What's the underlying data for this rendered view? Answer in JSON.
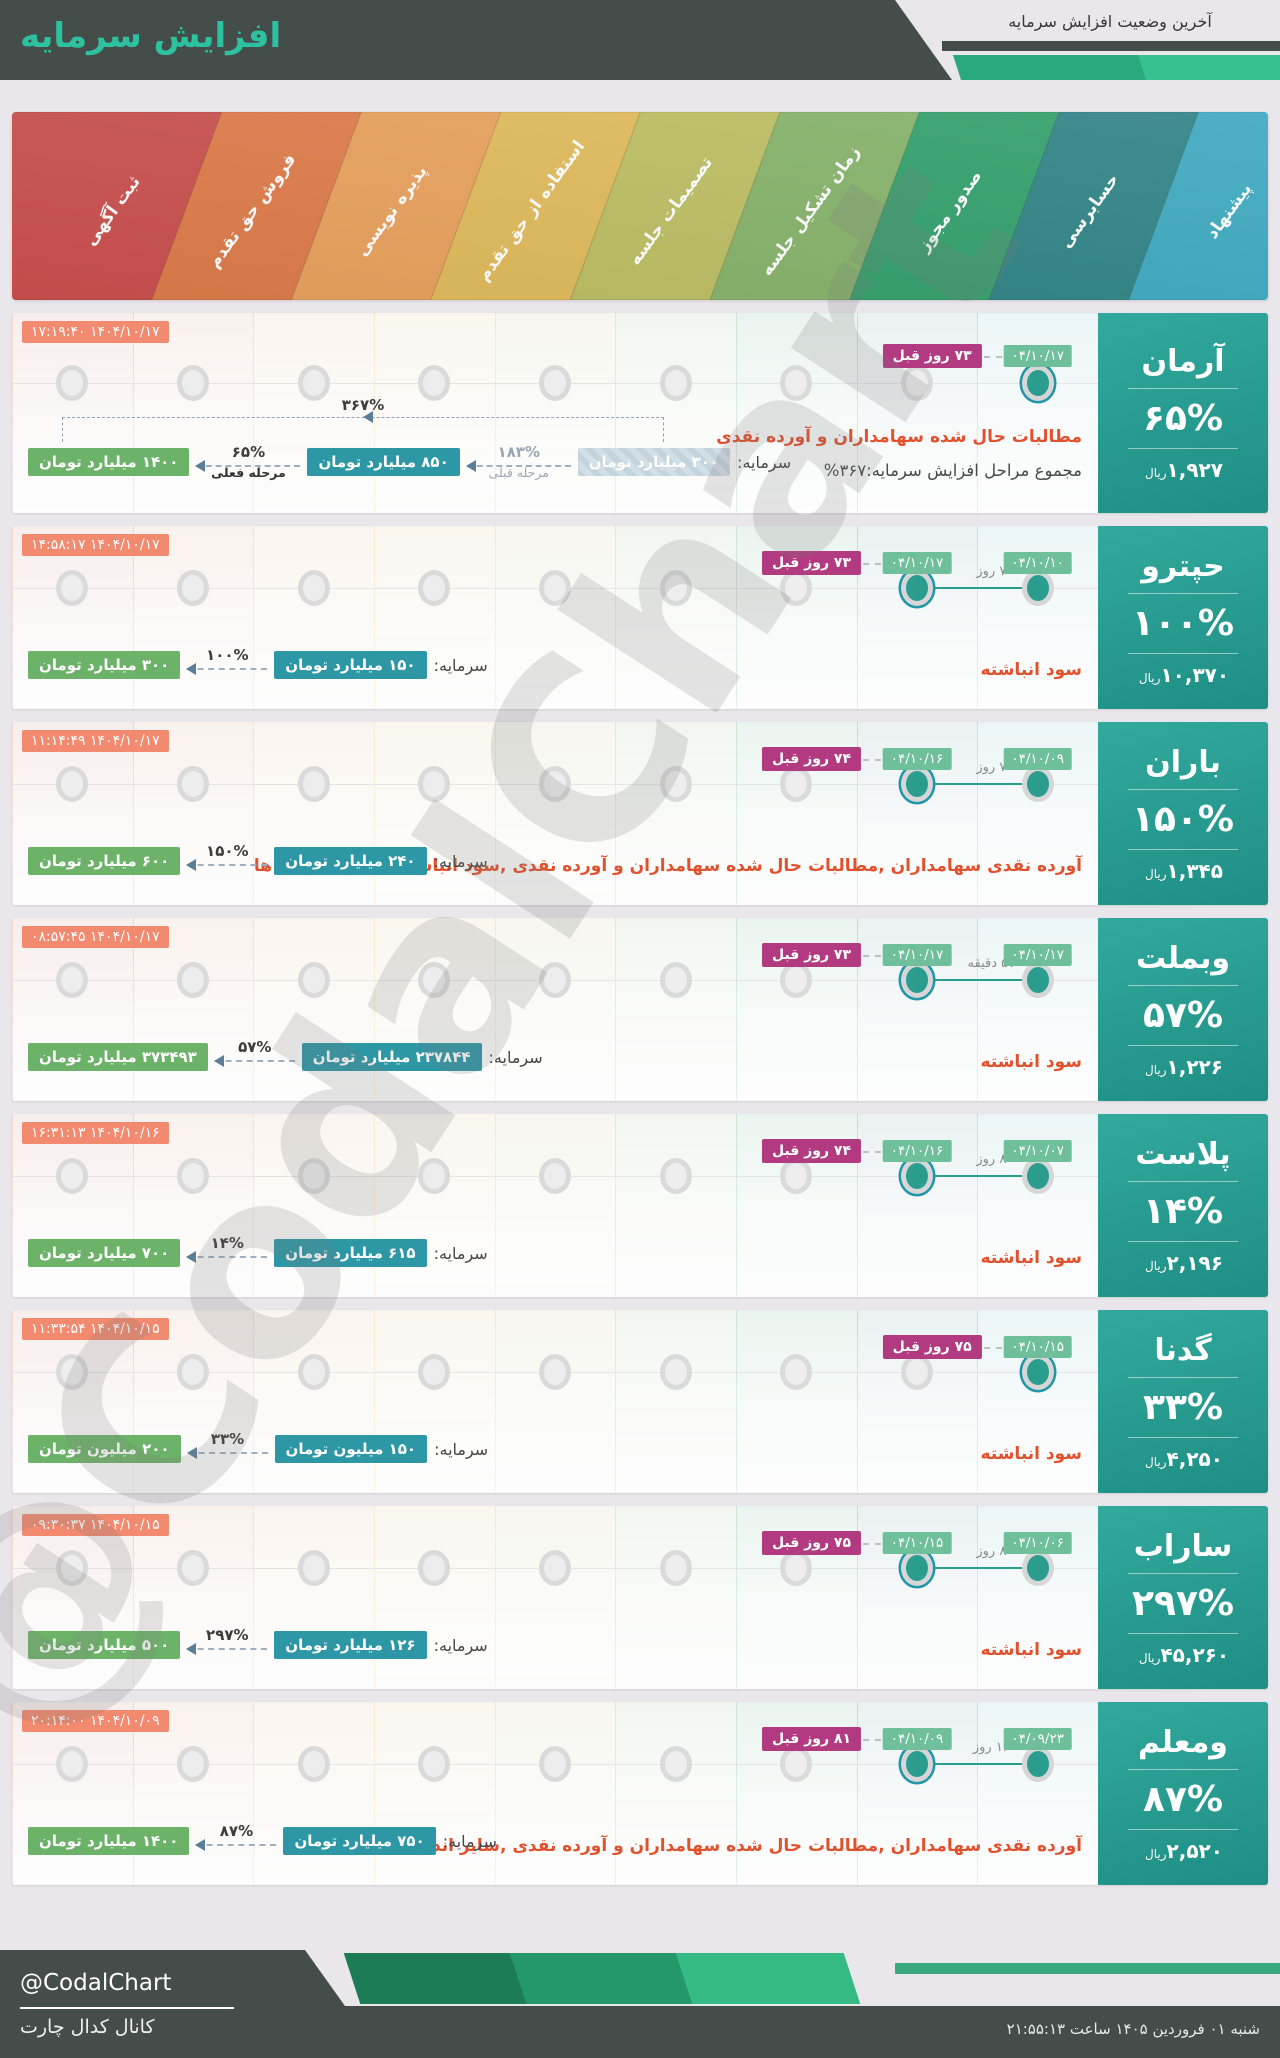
{
  "header": {
    "top_right_title": "آخرین وضعیت افزایش سرمایه",
    "main_title": "افزایش سرمایه"
  },
  "watermark": "@CodalChart",
  "stages": [
    {
      "label": "پیشنهاد",
      "color": "#3aa7be"
    },
    {
      "label": "حسابرسی",
      "color": "#2c8183"
    },
    {
      "label": "صدور مجوز",
      "color": "#2f9e68"
    },
    {
      "label": "زمان تشکیل جلسه",
      "color": "#84b168"
    },
    {
      "label": "تصمیمات جلسه",
      "color": "#bcbd61"
    },
    {
      "label": "استفاده از حق تقدم",
      "color": "#e0ba5a"
    },
    {
      "label": "پذیره نویسی",
      "color": "#e9a15c"
    },
    {
      "label": "فروش حق تقدم",
      "color": "#df7c4a"
    },
    {
      "label": "ثبت آگهی",
      "color": "#cb514f"
    }
  ],
  "colors": {
    "active_dot": "#2a9d8f",
    "ring": "#1e96a5",
    "date_badge": "#6fbf9b",
    "days_badge": "#b23a80",
    "timestamp_badge": "#f28a70",
    "desc_text": "#e2512e",
    "capital_teal": "#2d97a5",
    "capital_green": "#6cb269"
  },
  "rows": [
    {
      "name": "آرمان",
      "percent": "۶۵%",
      "price": "۱,۹۲۷",
      "price_unit": "ریال",
      "timestamp": "۱۴۰۴/۱۰/۱۷ ۱۷:۱۹:۴۰",
      "current_stage_index": 0,
      "current_date": "۰۴/۱۰/۱۷",
      "days_ago": "۷۳ روز قبل",
      "proposal_date": null,
      "gap_label": null,
      "description": "مطالبات حال شده سهامداران و آورده نقدی",
      "total_note": "مجموع مراحل افزایش سرمایه:۳۶۷%",
      "capital": {
        "label": "سرمایه:",
        "total": "۳۶۷%",
        "steps": [
          {
            "kind": "value",
            "text": "۳۰۰ میلیارد تومان",
            "style": "hatched"
          },
          {
            "kind": "arrow",
            "pct": "۱۸۳%",
            "sub": "مرحله قبلی",
            "muted": true
          },
          {
            "kind": "value",
            "text": "۸۵۰ میلیارد تومان",
            "style": "teal"
          },
          {
            "kind": "arrow",
            "pct": "۶۵%",
            "sub": "مرحله فعلی",
            "muted": false
          },
          {
            "kind": "value",
            "text": "۱۴۰۰ میلیارد تومان",
            "style": "green"
          }
        ]
      }
    },
    {
      "name": "حپترو",
      "percent": "۱۰۰%",
      "price": "۱۰,۳۷۰",
      "price_unit": "ریال",
      "timestamp": "۱۴۰۴/۱۰/۱۷ ۱۴:۵۸:۱۷",
      "current_stage_index": 1,
      "current_date": "۰۴/۱۰/۱۷",
      "days_ago": "۷۳ روز قبل",
      "proposal_date": "۰۴/۱۰/۱۰",
      "gap_label": "۷ روز",
      "description": "سود انباشته",
      "total_note": null,
      "capital": {
        "label": "سرمایه:",
        "steps": [
          {
            "kind": "value",
            "text": "۱۵۰ میلیارد تومان",
            "style": "teal"
          },
          {
            "kind": "arrow",
            "pct": "۱۰۰%"
          },
          {
            "kind": "value",
            "text": "۳۰۰ میلیارد تومان",
            "style": "green"
          }
        ]
      }
    },
    {
      "name": "باران",
      "percent": "۱۵۰%",
      "price": "۱,۳۴۵",
      "price_unit": "ریال",
      "timestamp": "۱۴۰۴/۱۰/۱۷ ۱۱:۱۴:۴۹",
      "current_stage_index": 1,
      "current_date": "۰۴/۱۰/۱۶",
      "days_ago": "۷۴ روز قبل",
      "proposal_date": "۰۴/۱۰/۰۹",
      "gap_label": "۷ روز",
      "description": "آورده نقدی سهامداران ,مطالبات حال شده سهامداران و آورده نقدی ,سود انباشته, سایر اندوخته ها",
      "total_note": null,
      "capital": {
        "label": "سرمایه:",
        "steps": [
          {
            "kind": "value",
            "text": "۲۴۰ میلیارد تومان",
            "style": "teal"
          },
          {
            "kind": "arrow",
            "pct": "۱۵۰%"
          },
          {
            "kind": "value",
            "text": "۶۰۰ میلیارد تومان",
            "style": "green"
          }
        ]
      }
    },
    {
      "name": "وبملت",
      "percent": "۵۷%",
      "price": "۱,۲۲۶",
      "price_unit": "ریال",
      "timestamp": "۱۴۰۴/۱۰/۱۷ ۰۸:۵۷:۴۵",
      "current_stage_index": 1,
      "current_date": "۰۴/۱۰/۱۷",
      "days_ago": "۷۳ روز قبل",
      "proposal_date": "۰۴/۱۰/۱۷",
      "gap_label": "۵۷ دقیقه",
      "description": "سود انباشته",
      "total_note": null,
      "capital": {
        "label": "سرمایه:",
        "steps": [
          {
            "kind": "value",
            "text": "۲۳۷۸۴۴ میلیارد تومان",
            "style": "teal"
          },
          {
            "kind": "arrow",
            "pct": "۵۷%"
          },
          {
            "kind": "value",
            "text": "۳۷۳۴۹۳ میلیارد تومان",
            "style": "green"
          }
        ]
      }
    },
    {
      "name": "پلاست",
      "percent": "۱۴%",
      "price": "۲,۱۹۶",
      "price_unit": "ریال",
      "timestamp": "۱۴۰۴/۱۰/۱۶ ۱۶:۳۱:۱۳",
      "current_stage_index": 1,
      "current_date": "۰۴/۱۰/۱۶",
      "days_ago": "۷۴ روز قبل",
      "proposal_date": "۰۴/۱۰/۰۷",
      "gap_label": "۸ روز",
      "description": "سود انباشته",
      "total_note": null,
      "capital": {
        "label": "سرمایه:",
        "steps": [
          {
            "kind": "value",
            "text": "۶۱۵ میلیارد تومان",
            "style": "teal"
          },
          {
            "kind": "arrow",
            "pct": "۱۴%"
          },
          {
            "kind": "value",
            "text": "۷۰۰ میلیارد تومان",
            "style": "green"
          }
        ]
      }
    },
    {
      "name": "گدنا",
      "percent": "۳۳%",
      "price": "۴,۲۵۰",
      "price_unit": "ریال",
      "timestamp": "۱۴۰۴/۱۰/۱۵ ۱۱:۳۳:۵۴",
      "current_stage_index": 0,
      "current_date": "۰۴/۱۰/۱۵",
      "days_ago": "۷۵ روز قبل",
      "proposal_date": null,
      "gap_label": null,
      "description": "سود انباشته",
      "total_note": null,
      "capital": {
        "label": "سرمایه:",
        "steps": [
          {
            "kind": "value",
            "text": "۱۵۰ میلیون تومان",
            "style": "teal"
          },
          {
            "kind": "arrow",
            "pct": "۳۳%"
          },
          {
            "kind": "value",
            "text": "۲۰۰ میلیون تومان",
            "style": "green"
          }
        ]
      }
    },
    {
      "name": "ساراب",
      "percent": "۲۹۷%",
      "price": "۴۵,۲۶۰",
      "price_unit": "ریال",
      "timestamp": "۱۴۰۴/۱۰/۱۵ ۰۹:۳۰:۳۷",
      "current_stage_index": 1,
      "current_date": "۰۴/۱۰/۱۵",
      "days_ago": "۷۵ روز قبل",
      "proposal_date": "۰۴/۱۰/۰۶",
      "gap_label": "۸ روز",
      "description": "سود انباشته",
      "total_note": null,
      "capital": {
        "label": "سرمایه:",
        "steps": [
          {
            "kind": "value",
            "text": "۱۲۶ میلیارد تومان",
            "style": "teal"
          },
          {
            "kind": "arrow",
            "pct": "۲۹۷%"
          },
          {
            "kind": "value",
            "text": "۵۰۰ میلیارد تومان",
            "style": "green"
          }
        ]
      }
    },
    {
      "name": "ومعلم",
      "percent": "۸۷%",
      "price": "۲,۵۲۰",
      "price_unit": "ریال",
      "timestamp": "۱۴۰۴/۱۰/۰۹ ۲۰:۱۴:۰۰",
      "current_stage_index": 1,
      "current_date": "۰۴/۱۰/۰۹",
      "days_ago": "۸۱ روز قبل",
      "proposal_date": "۰۴/۰۹/۲۳",
      "gap_label": "۱۶ روز",
      "description": "آورده نقدی سهامداران ,مطالبات حال شده سهامداران و آورده نقدی ,سایر اندوخته ها",
      "total_note": null,
      "capital": {
        "label": "سرمایه:",
        "steps": [
          {
            "kind": "value",
            "text": "۷۵۰ میلیارد تومان",
            "style": "teal"
          },
          {
            "kind": "arrow",
            "pct": "۸۷%"
          },
          {
            "kind": "value",
            "text": "۱۴۰۰ میلیارد تومان",
            "style": "green"
          }
        ]
      }
    }
  ],
  "footer": {
    "brand": "@CodalChart",
    "channel": "کانال کدال چارت",
    "datetime": "شنبه ۰۱ فروردین ۱۴۰۵ ساعت ۲۱:۵۵:۱۳"
  }
}
